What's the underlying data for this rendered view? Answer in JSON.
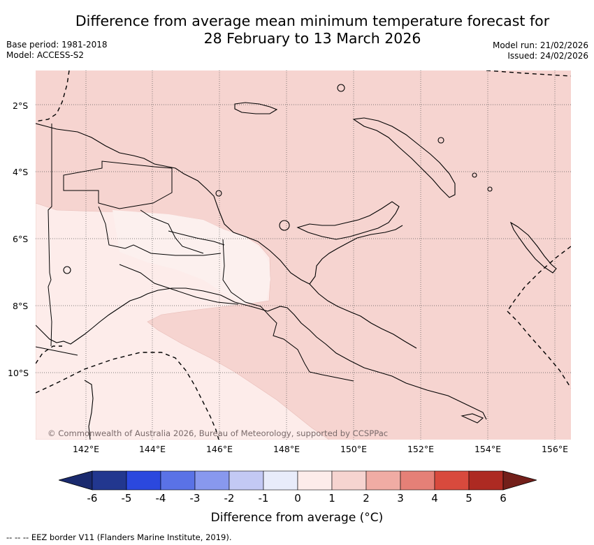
{
  "title_line1": "Difference from average mean minimum temperature forecast for",
  "title_line2": "28 February to 13 March 2026",
  "base_period": "Base period: 1981-2018",
  "model": "Model: ACCESS-S2",
  "model_run": "Model run: 21/02/2026",
  "issued": "Issued: 24/02/2026",
  "credit": "© Commonwealth of Australia 2026, Bureau of Meteorology, supported by CCSPPac",
  "lat_labels": [
    "2°S",
    "4°S",
    "6°S",
    "8°S",
    "10°S"
  ],
  "lon_labels": [
    "142°E",
    "144°E",
    "146°E",
    "148°E",
    "150°E",
    "152°E",
    "154°E",
    "156°E"
  ],
  "colorbar": {
    "ticks": [
      "-6",
      "-5",
      "-4",
      "-3",
      "-2",
      "-1",
      "0",
      "1",
      "2",
      "3",
      "4",
      "5",
      "6"
    ],
    "colors": [
      "#22378f",
      "#2b48de",
      "#5a72e6",
      "#8898ee",
      "#c3c9f4",
      "#e8ecfa",
      "#fdecea",
      "#f6d4d0",
      "#f0aca4",
      "#e58077",
      "#d84a3d",
      "#ad2a22"
    ],
    "under_color": "#1a2a6e",
    "over_color": "#731f1a",
    "label": "Difference from average (°C)"
  },
  "footnote": "-- -- -- EEZ border V11 (Flanders Marine Institute, 2019).",
  "map": {
    "anomaly_colors": {
      "0_to_1": "#fdecea",
      "1_to_2": "#f6d4d0"
    },
    "coastline_color": "#000000",
    "grid_style": "dotted"
  }
}
